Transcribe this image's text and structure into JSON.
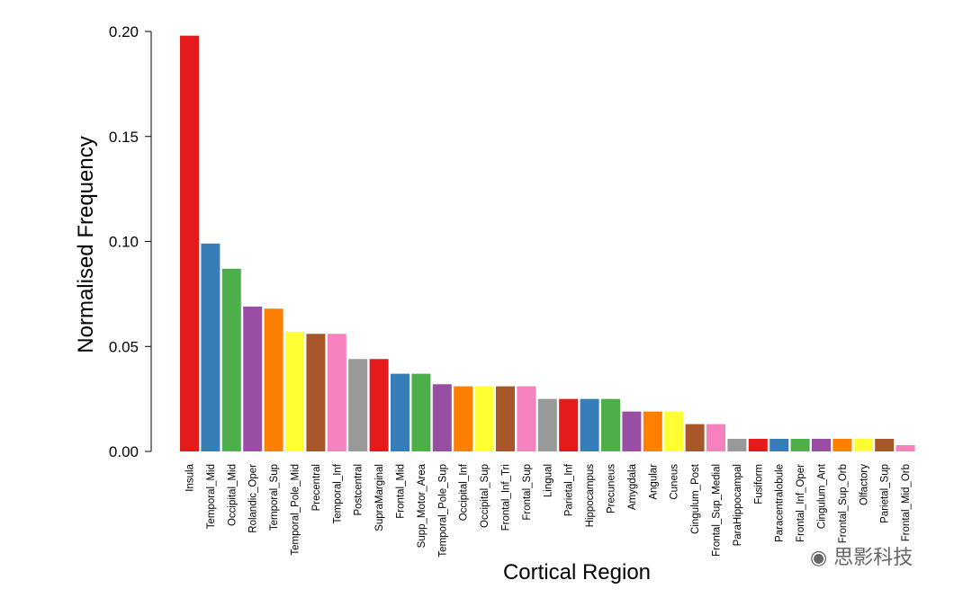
{
  "chart_data": {
    "type": "bar",
    "title": "",
    "xlabel": "Cortical Region",
    "ylabel": "Normalised Frequency",
    "ylim": [
      0,
      0.2
    ],
    "yticks": [
      "0.00",
      "0.05",
      "0.10",
      "0.15",
      "0.20"
    ],
    "grid": false,
    "categories": [
      "Insula",
      "Temporal_Mid",
      "Occipital_Mid",
      "Rolandic_Oper",
      "Temporal_Sup",
      "Temporal_Pole_Mid",
      "Precentral",
      "Temporal_Inf",
      "Postcentral",
      "SupraMarginal",
      "Frontal_Mid",
      "Supp_Motor_Area",
      "Temporal_Pole_Sup",
      "Occipital_Inf",
      "Occipital_Sup",
      "Frontal_Inf_Tri",
      "Frontal_Sup",
      "Lingual",
      "Parietal_Inf",
      "Hippocampus",
      "Precuneus",
      "Amygdala",
      "Angular",
      "Cuneus",
      "Cingulum_Post",
      "Frontal_Sup_Medial",
      "ParaHippocampal",
      "Fusiform",
      "Paracentralobule",
      "Frontal_Inf_Oper",
      "Cingulum_Ant",
      "Frontal_Sup_Orb",
      "Olfactory",
      "Parietal_Sup",
      "Frontal_Mid_Orb"
    ],
    "values": [
      0.198,
      0.099,
      0.087,
      0.069,
      0.068,
      0.057,
      0.056,
      0.056,
      0.044,
      0.044,
      0.037,
      0.037,
      0.032,
      0.031,
      0.031,
      0.031,
      0.031,
      0.025,
      0.025,
      0.025,
      0.025,
      0.019,
      0.019,
      0.019,
      0.013,
      0.013,
      0.006,
      0.006,
      0.006,
      0.006,
      0.006,
      0.006,
      0.006,
      0.006,
      0.003
    ],
    "colors": [
      "#e41a1c",
      "#377eb8",
      "#4daf4a",
      "#984ea3",
      "#ff7f00",
      "#ffff33",
      "#a65628",
      "#f781bf",
      "#999999",
      "#e41a1c",
      "#377eb8",
      "#4daf4a",
      "#984ea3",
      "#ff7f00",
      "#ffff33",
      "#a65628",
      "#f781bf",
      "#999999",
      "#e41a1c",
      "#377eb8",
      "#4daf4a",
      "#984ea3",
      "#ff7f00",
      "#ffff33",
      "#a65628",
      "#f781bf",
      "#999999",
      "#e41a1c",
      "#377eb8",
      "#4daf4a",
      "#984ea3",
      "#ff7f00",
      "#ffff33",
      "#a65628",
      "#f781bf"
    ]
  },
  "watermark": {
    "text": "思影科技",
    "icon": "wechat-icon"
  }
}
